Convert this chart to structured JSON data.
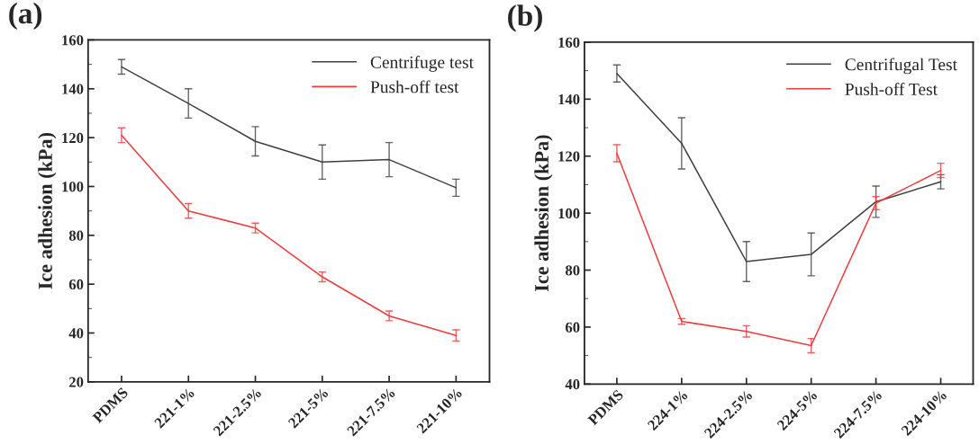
{
  "chart_data": [
    {
      "type": "line",
      "title": "(a)",
      "ylabel": "Ice adhesion (kPa)",
      "categories": [
        "PDMS",
        "221-1%",
        "221-2.5%",
        "221-5%",
        "221-7.5%",
        "221-10%"
      ],
      "ylim": [
        20,
        160
      ],
      "yticks": [
        20,
        40,
        60,
        80,
        100,
        120,
        140,
        160
      ],
      "legend": "top right",
      "series": [
        {
          "name": "Centrifuge test",
          "color": "#404040",
          "values": [
            149,
            134,
            118.5,
            110,
            111,
            99.5
          ],
          "errors": [
            3,
            6,
            6,
            7,
            7,
            3.5
          ]
        },
        {
          "name": "Push-off test",
          "color": "#f03c3c",
          "values": [
            121,
            90,
            83,
            63,
            47,
            39
          ],
          "errors": [
            3,
            3,
            2,
            2,
            2,
            2.3
          ]
        }
      ]
    },
    {
      "type": "line",
      "title": "(b)",
      "ylabel": "Ice adhesion (kPa)",
      "categories": [
        "PDMS",
        "224-1%",
        "224-2.5%",
        "224-5%",
        "224-7.5%",
        "224-10%"
      ],
      "ylim": [
        40,
        160
      ],
      "yticks": [
        40,
        60,
        80,
        100,
        120,
        140,
        160
      ],
      "legend": "top right",
      "series": [
        {
          "name": "Centrifugal Test",
          "color": "#404040",
          "values": [
            149,
            124.5,
            83,
            85.5,
            104,
            111
          ],
          "errors": [
            3,
            9,
            7,
            7.5,
            5.5,
            2.5
          ]
        },
        {
          "name": "Push-off Test",
          "color": "#f03c3c",
          "values": [
            121,
            62,
            58.5,
            53.5,
            103.5,
            115
          ],
          "errors": [
            3,
            1,
            2,
            2.5,
            2.3,
            2.5
          ]
        }
      ]
    }
  ]
}
